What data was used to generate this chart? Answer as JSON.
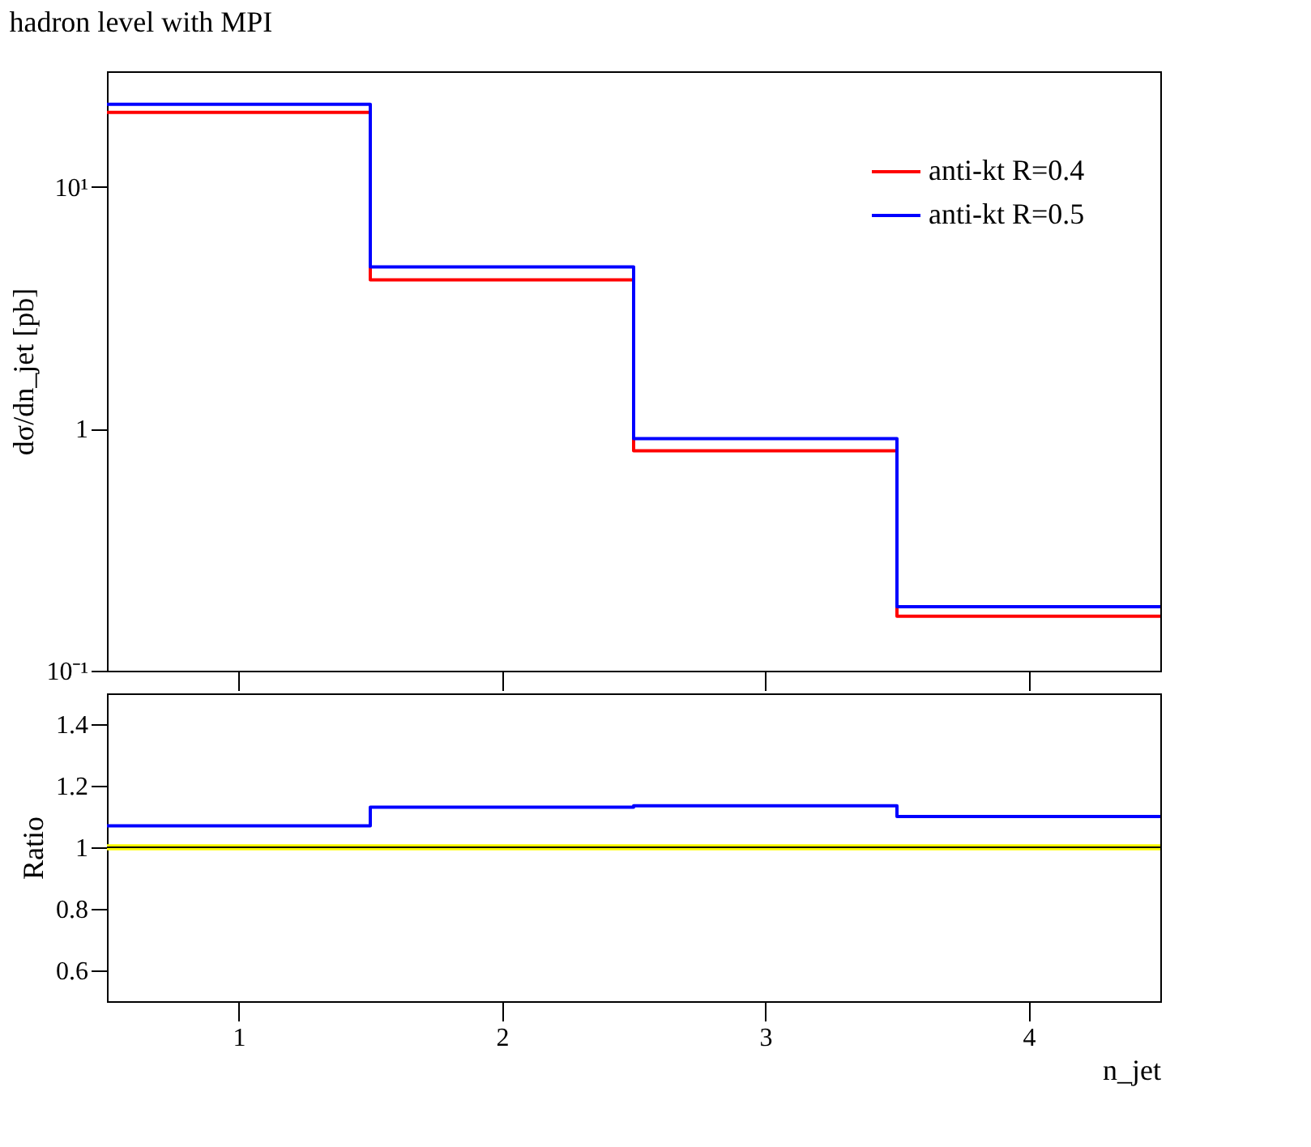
{
  "chart_data": [
    {
      "type": "histogram",
      "title": "hadron level with MPI",
      "ylabel": "dσ/dn_jet [pb]",
      "bins": [
        0.5,
        1.5,
        2.5,
        3.5,
        4.5
      ],
      "log": true,
      "legend": "top right",
      "tick_labels": "y",
      "grid": false,
      "xlim": [
        0.5,
        4.5
      ],
      "xticks": [
        1,
        2,
        3,
        4
      ],
      "ylim": [
        0.1,
        30
      ],
      "yticks": [
        {
          "value": 0.1,
          "label": "10⁻¹"
        },
        1,
        {
          "value": 10,
          "label": "10¹"
        }
      ],
      "series": [
        {
          "name": "anti-kt R=0.4",
          "color": "#ff0000",
          "values": [
            20.3,
            4.12,
            0.81,
            0.168
          ]
        },
        {
          "name": "anti-kt R=0.5",
          "color": "#0000ff",
          "values": [
            21.9,
            4.66,
            0.91,
            0.184
          ]
        }
      ]
    },
    {
      "type": "histogram",
      "xlabel": "n_jet",
      "ylabel": "Ratio",
      "bins": [
        0.5,
        1.5,
        2.5,
        3.5,
        4.5
      ],
      "legend": false,
      "grid": false,
      "xlim": [
        0.5,
        4.5
      ],
      "xticks": [
        1,
        2,
        3,
        4
      ],
      "ylim": [
        0.5,
        1.5
      ],
      "yticks": [
        0.6,
        0.8,
        1,
        1.2,
        1.4
      ],
      "bands": [
        {
          "axis": "y",
          "from": 0.99,
          "to": 1.01,
          "color": "#ffff00"
        }
      ],
      "series": [
        {
          "color": "#000000",
          "values": [
            1,
            1,
            1,
            1
          ]
        },
        {
          "color": "#0000ff",
          "values": [
            1.07,
            1.13,
            1.135,
            1.1
          ]
        }
      ]
    }
  ]
}
